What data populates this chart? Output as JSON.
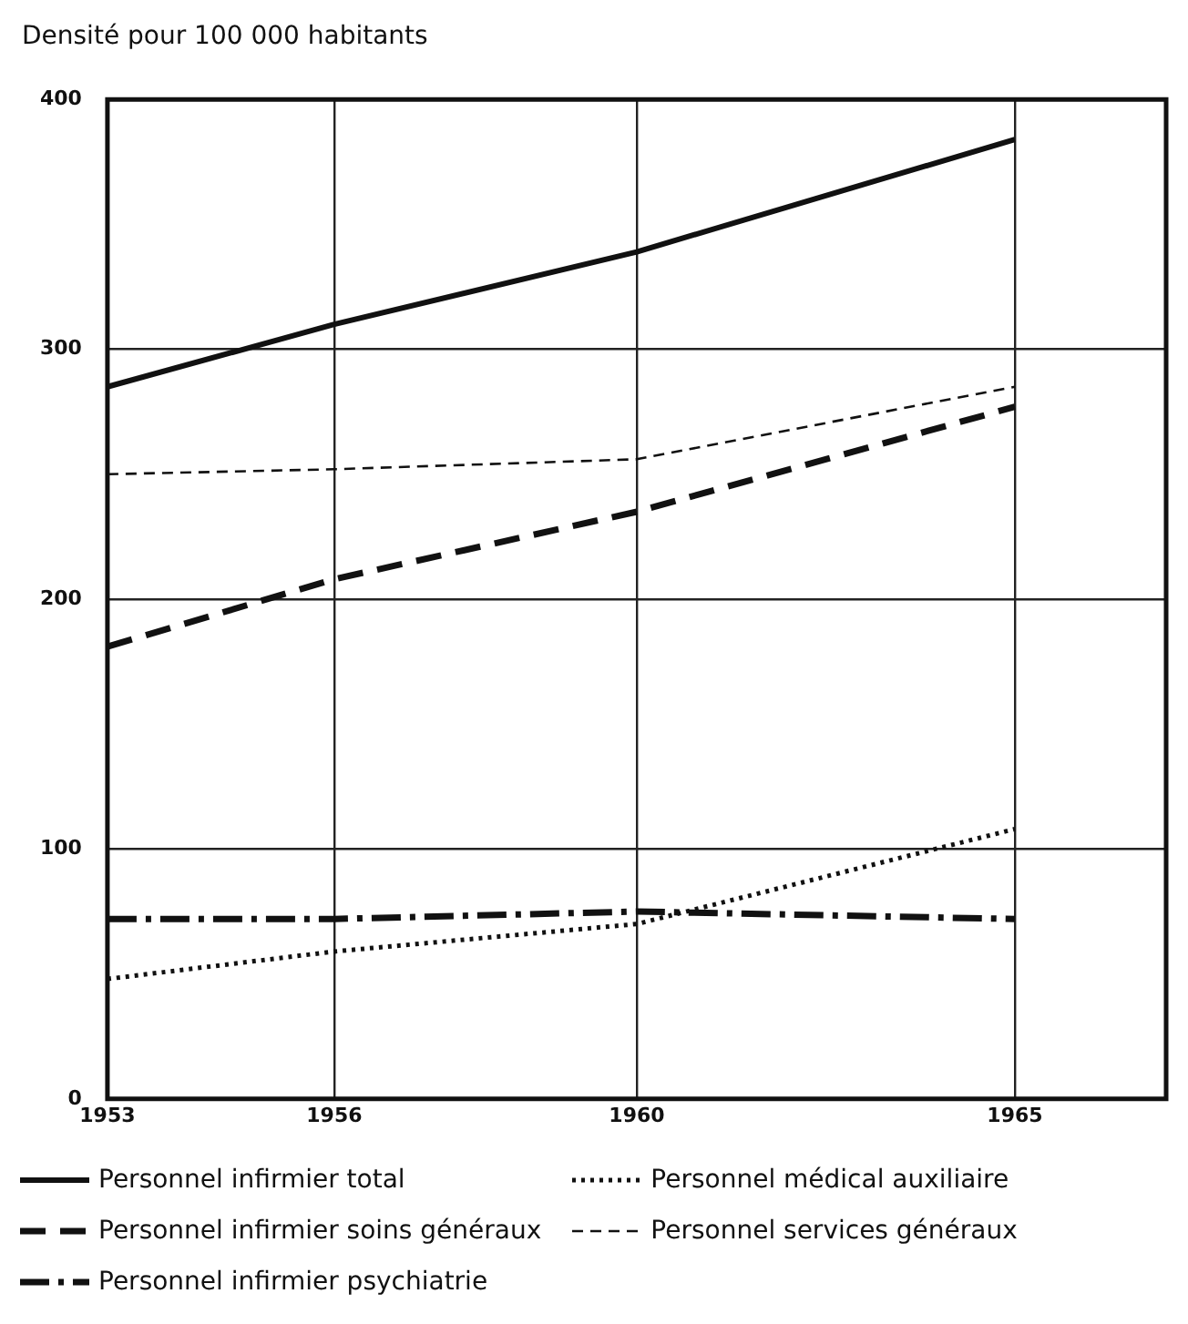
{
  "chart_data": {
    "type": "line",
    "ylabel": "Densité pour 100 000 habitants",
    "x": [
      1953,
      1956,
      1960,
      1965
    ],
    "xlim": [
      1953,
      1967
    ],
    "xticks": [
      1953,
      1956,
      1960,
      1965
    ],
    "ylim": [
      0,
      400
    ],
    "yticks": [
      0,
      100,
      200,
      300,
      400
    ],
    "grid": true,
    "legend": "bottom",
    "marker": "none",
    "series": [
      {
        "name": "Personnel infirmier total",
        "color": "#111111",
        "line_style": "solid",
        "values": [
          285,
          310,
          339,
          384
        ]
      },
      {
        "name": "Personnel infirmier soins généraux",
        "color": "#111111",
        "line_style": "dashed",
        "values": [
          181,
          208,
          235,
          277
        ]
      },
      {
        "name": "Personnel infirmier psychiatrie",
        "color": "#111111",
        "line_style": "dashdot",
        "values": [
          72,
          72,
          75,
          72
        ]
      },
      {
        "name": "Personnel médical auxiliaire",
        "color": "#111111",
        "line_style": "dotted",
        "values": [
          48,
          59,
          70,
          108
        ]
      },
      {
        "name": "Personnel services généraux",
        "color": "#111111",
        "line_style": "dashed_thin",
        "values": [
          250,
          252,
          256,
          285
        ]
      }
    ]
  }
}
